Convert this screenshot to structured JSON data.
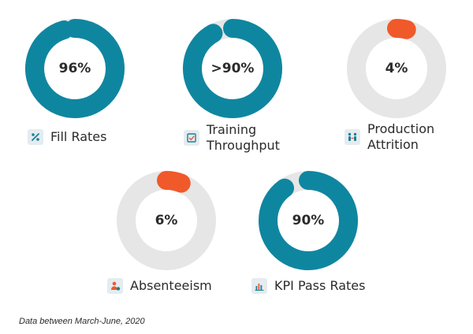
{
  "chart_data": [
    {
      "type": "pie",
      "label": "Fill Rates",
      "value_label": "96%",
      "value": 96,
      "icon": "percent-icon",
      "color": "#0f86a0"
    },
    {
      "type": "pie",
      "label": "Training Throughput",
      "value_label": ">90%",
      "value": 92,
      "icon": "checklist-icon",
      "color": "#0f86a0"
    },
    {
      "type": "pie",
      "label": "Production Attrition",
      "value_label": "4%",
      "value": 4,
      "icon": "people-exchange-icon",
      "color": "#f0592a"
    },
    {
      "type": "pie",
      "label": "Absenteeism",
      "value_label": "6%",
      "value": 6,
      "icon": "person-away-icon",
      "color": "#f0592a"
    },
    {
      "type": "pie",
      "label": "KPI Pass Rates",
      "value_label": "90%",
      "value": 90,
      "icon": "bar-chart-icon",
      "color": "#0f86a0"
    }
  ],
  "track_color": "#e6e6e6",
  "footnote": "Data between March-June, 2020"
}
